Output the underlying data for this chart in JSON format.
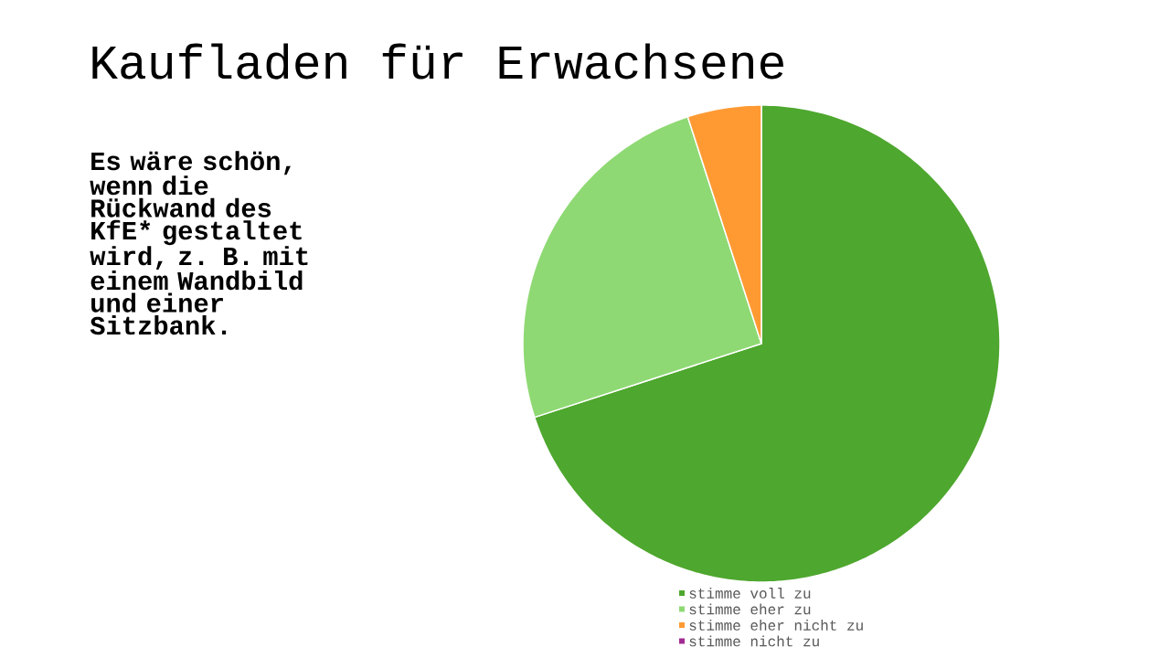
{
  "chart_data": {
    "type": "pie",
    "title": "Kaufladen für Erwachsene",
    "subtitle": "Es wäre schön, wenn die Rückwand des KfE* gestaltet wird, z. B. mit einem Wandbild und einer Sitzbank.",
    "categories": [
      "stimme voll zu",
      "stimme eher zu",
      "stimme eher nicht zu",
      "stimme nicht zu"
    ],
    "values": [
      70,
      25,
      5,
      0
    ],
    "colors": [
      "#4ea72e",
      "#8ed973",
      "#ff9a33",
      "#a02b93"
    ],
    "legend": "bottom"
  }
}
